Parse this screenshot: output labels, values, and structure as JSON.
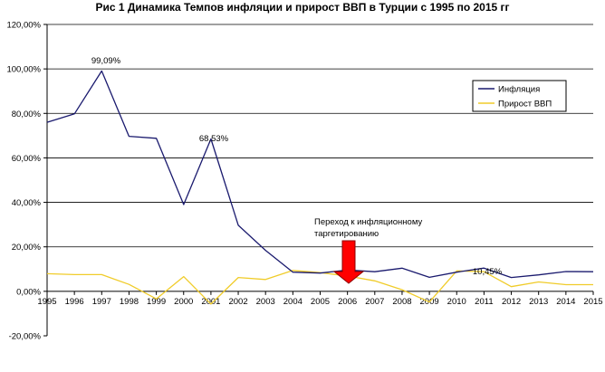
{
  "chart_data": {
    "type": "line",
    "title": "Рис 1 Динамика Темпов инфляции и прирост ВВП в Турции с 1995 по 2015 гг",
    "x": [
      "1995",
      "1996",
      "1997",
      "1998",
      "1999",
      "2000",
      "2001",
      "2002",
      "2003",
      "2004",
      "2005",
      "2006",
      "2007",
      "2008",
      "2009",
      "2010",
      "2011",
      "2012",
      "2013",
      "2014",
      "2015"
    ],
    "series": [
      {
        "name": "Инфляция",
        "color": "#1a1a6e",
        "values": [
          76.0,
          79.8,
          99.09,
          69.7,
          68.8,
          39.0,
          68.53,
          29.7,
          18.4,
          8.6,
          8.2,
          9.6,
          8.8,
          10.4,
          6.3,
          8.6,
          10.45,
          6.2,
          7.4,
          8.9,
          8.8
        ]
      },
      {
        "name": "Прирост ВВП",
        "color": "#f0cc2a",
        "values": [
          7.9,
          7.5,
          7.5,
          3.1,
          -3.4,
          6.6,
          -5.7,
          6.2,
          5.3,
          9.4,
          8.4,
          6.9,
          4.7,
          0.7,
          -4.8,
          9.2,
          8.8,
          2.1,
          4.2,
          3.0,
          3.0
        ]
      }
    ],
    "ylim": [
      -20,
      120
    ],
    "yticks": [
      "-20,00%",
      "0,00%",
      "20,00%",
      "40,00%",
      "60,00%",
      "80,00%",
      "100,00%",
      "120,00%"
    ],
    "grid": true,
    "legend": "right",
    "annotations": {
      "peak_1997": "99,09%",
      "peak_2001": "68,53%",
      "label_2011": "10,45%",
      "transition_line1": "Переход к инфляционному",
      "transition_line2": "таргетированию",
      "arrow_color": "#ff0000"
    }
  }
}
